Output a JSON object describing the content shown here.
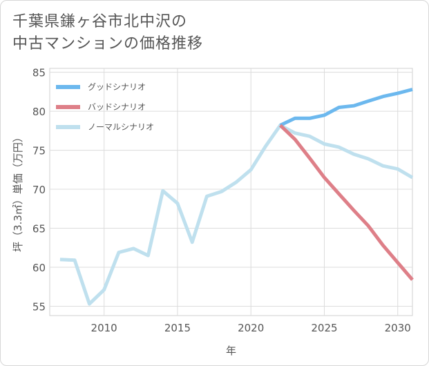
{
  "title": {
    "line1": "千葉県鎌ヶ谷市北中沢の",
    "line2": "中古マンションの価格推移"
  },
  "chart_data": {
    "type": "line",
    "xlabel": "年",
    "ylabel": "坪（3.3㎡）単価（万円）",
    "xlim": [
      2006.3,
      2031
    ],
    "ylim": [
      53.8,
      85.5
    ],
    "xticks": [
      2010,
      2015,
      2020,
      2025,
      2030
    ],
    "yticks": [
      55,
      60,
      65,
      70,
      75,
      80,
      85
    ],
    "grid": true,
    "legend_position": "top-left",
    "series": [
      {
        "name": "グッドシナリオ",
        "color": "#6cb8ee",
        "x": [
          2022,
          2023,
          2024,
          2025,
          2026,
          2027,
          2028,
          2029,
          2030,
          2031
        ],
        "y": [
          78.2,
          79.1,
          79.1,
          79.5,
          80.5,
          80.7,
          81.3,
          81.9,
          82.3,
          82.8
        ]
      },
      {
        "name": "バッドシナリオ",
        "color": "#de7f88",
        "x": [
          2022,
          2023,
          2024,
          2025,
          2026,
          2027,
          2028,
          2029,
          2030,
          2031
        ],
        "y": [
          78.2,
          76.4,
          74.0,
          71.5,
          69.4,
          67.3,
          65.3,
          62.8,
          60.6,
          58.4
        ]
      },
      {
        "name": "ノーマルシナリオ",
        "color": "#bfe0ee",
        "x": [
          2007,
          2008,
          2009,
          2010,
          2011,
          2012,
          2013,
          2014,
          2015,
          2016,
          2017,
          2018,
          2019,
          2020,
          2021,
          2022,
          2023,
          2024,
          2025,
          2026,
          2027,
          2028,
          2029,
          2030,
          2031
        ],
        "y": [
          61.0,
          60.9,
          55.3,
          57.1,
          61.9,
          62.4,
          61.5,
          69.8,
          68.2,
          63.2,
          69.1,
          69.7,
          70.9,
          72.5,
          75.5,
          78.2,
          77.2,
          76.8,
          75.8,
          75.4,
          74.5,
          73.9,
          73.0,
          72.6,
          71.5
        ]
      }
    ]
  }
}
